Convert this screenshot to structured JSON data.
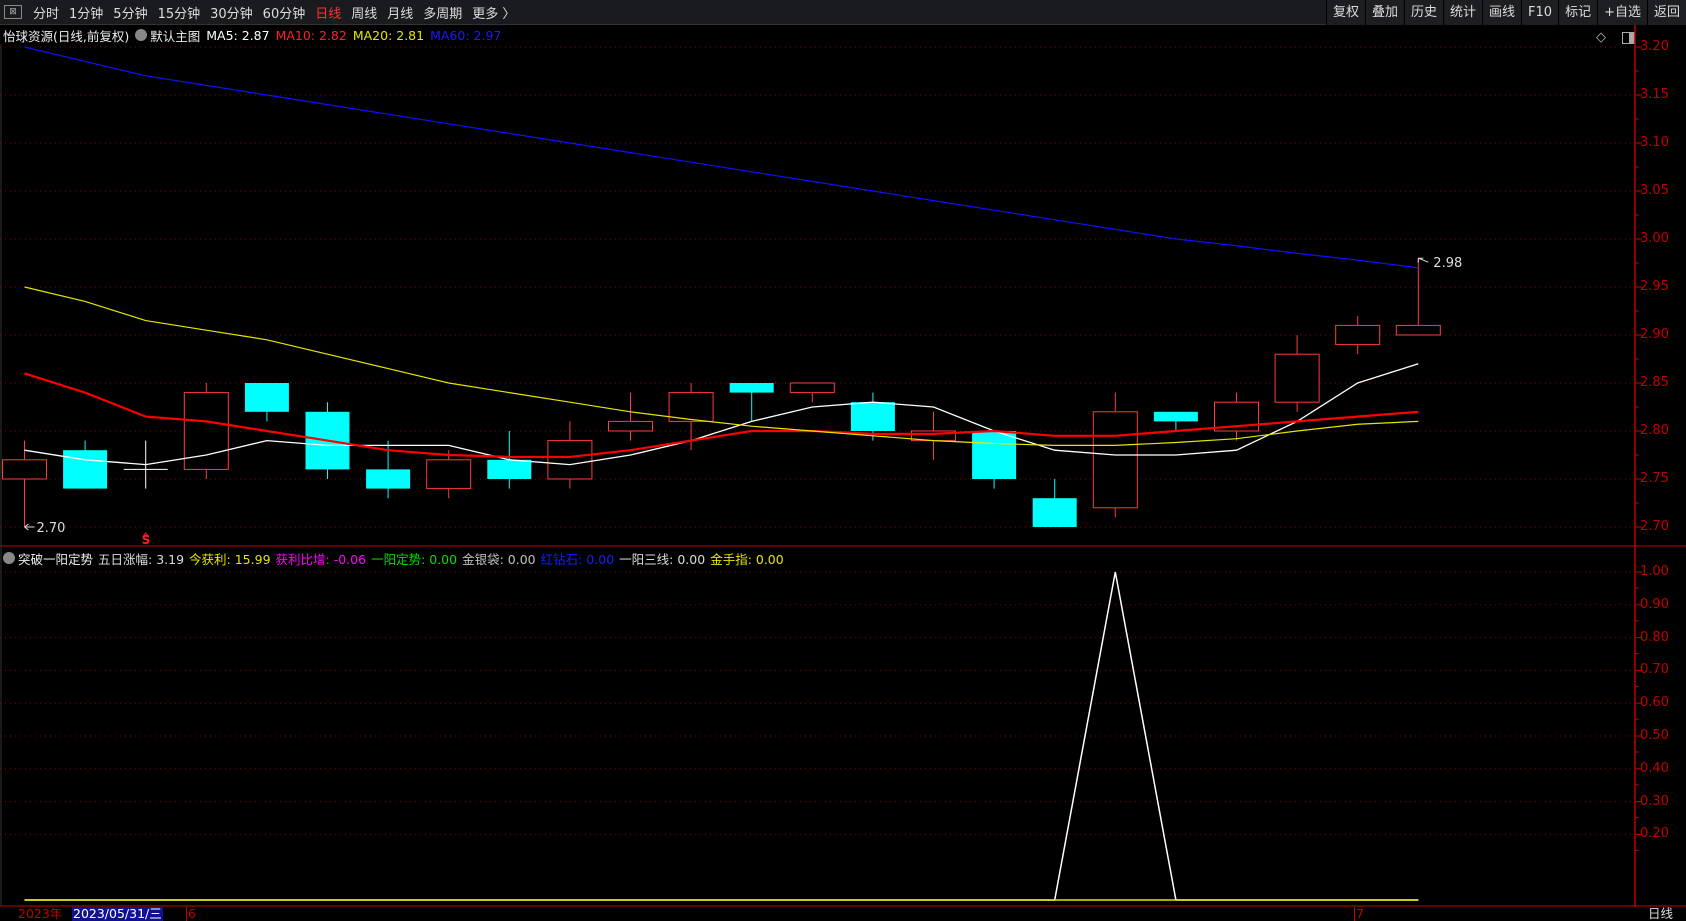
{
  "toolbar": {
    "tabs": [
      "分时",
      "1分钟",
      "5分钟",
      "15分钟",
      "30分钟",
      "60分钟",
      "日线",
      "周线",
      "月线",
      "多周期",
      "更多 〉"
    ],
    "active": "日线",
    "right_buttons": [
      "复权",
      "叠加",
      "历史",
      "统计",
      "画线",
      "F10",
      "标记",
      "+自选",
      "返回"
    ]
  },
  "info": {
    "title": "怡球资源(日线,前复权)",
    "template": "默认主图",
    "ma5": "MA5: 2.87",
    "ma10": "MA10: 2.82",
    "ma20": "MA20: 2.81",
    "ma60": "MA60: 2.97"
  },
  "indicator": {
    "name": "突破一阳定势",
    "items": [
      {
        "label": "五日涨幅: 3.19",
        "color": "#dddddd"
      },
      {
        "label": "今获利: 15.99",
        "color": "#e6e600"
      },
      {
        "label": "获利比增: -0.06",
        "color": "#ff00ff"
      },
      {
        "label": "一阳定势: 0.00",
        "color": "#00e000"
      },
      {
        "label": "金银袋: 0.00",
        "color": "#c0c0c0"
      },
      {
        "label": "红钻石: 0.00",
        "color": "#1020ff"
      },
      {
        "label": "一阳三线: 0.00",
        "color": "#dddddd"
      },
      {
        "label": "金手指: 0.00",
        "color": "#e6e600"
      }
    ]
  },
  "markers": {
    "low_label": "2.70",
    "high_label": "2.98",
    "signal": "S"
  },
  "datestrip": {
    "year": "2023年",
    "cursor_date": "2023/05/31/三",
    "month6": "6",
    "month7": "7",
    "period": "日线"
  },
  "colors": {
    "up": "#ff3b3b",
    "down": "#00ffff",
    "ma5": "#ffffff",
    "ma10": "#ff0000",
    "ma20": "#e6e600",
    "ma60": "#1010ff",
    "axis": "#c00000"
  },
  "chart_data": [
    {
      "type": "candlestick",
      "ylim": [
        2.7,
        3.2
      ],
      "yticks": [
        "3.20",
        "3.15",
        "3.10",
        "3.05",
        "3.00",
        "2.95",
        "2.90",
        "2.85",
        "2.80",
        "2.75",
        "2.70"
      ],
      "ohlc": [
        [
          2.75,
          2.79,
          2.7,
          2.77
        ],
        [
          2.78,
          2.79,
          2.74,
          2.74
        ],
        [
          2.76,
          2.79,
          2.74,
          2.76
        ],
        [
          2.76,
          2.85,
          2.75,
          2.84
        ],
        [
          2.85,
          2.85,
          2.81,
          2.82
        ],
        [
          2.82,
          2.83,
          2.75,
          2.76
        ],
        [
          2.76,
          2.79,
          2.73,
          2.74
        ],
        [
          2.74,
          2.78,
          2.73,
          2.77
        ],
        [
          2.77,
          2.8,
          2.74,
          2.75
        ],
        [
          2.75,
          2.81,
          2.74,
          2.79
        ],
        [
          2.8,
          2.84,
          2.79,
          2.81
        ],
        [
          2.81,
          2.85,
          2.78,
          2.84
        ],
        [
          2.85,
          2.85,
          2.81,
          2.84
        ],
        [
          2.84,
          2.85,
          2.83,
          2.85
        ],
        [
          2.83,
          2.84,
          2.79,
          2.8
        ],
        [
          2.79,
          2.82,
          2.77,
          2.8
        ],
        [
          2.8,
          2.8,
          2.74,
          2.75
        ],
        [
          2.73,
          2.75,
          2.7,
          2.7
        ],
        [
          2.72,
          2.84,
          2.71,
          2.82
        ],
        [
          2.82,
          2.82,
          2.8,
          2.81
        ],
        [
          2.8,
          2.84,
          2.79,
          2.83
        ],
        [
          2.83,
          2.9,
          2.82,
          2.88
        ],
        [
          2.89,
          2.92,
          2.88,
          2.91
        ],
        [
          2.9,
          2.98,
          2.9,
          2.91
        ]
      ],
      "series": [
        {
          "name": "MA5",
          "values": [
            2.78,
            2.77,
            2.765,
            2.775,
            2.79,
            2.785,
            2.785,
            2.785,
            2.77,
            2.765,
            2.775,
            2.79,
            2.81,
            2.825,
            2.83,
            2.825,
            2.8,
            2.78,
            2.775,
            2.775,
            2.78,
            2.81,
            2.85,
            2.87
          ]
        },
        {
          "name": "MA10",
          "values": [
            2.86,
            2.84,
            2.815,
            2.81,
            2.8,
            2.79,
            2.78,
            2.775,
            2.773,
            2.773,
            2.78,
            2.79,
            2.8,
            2.8,
            2.797,
            2.797,
            2.8,
            2.795,
            2.795,
            2.8,
            2.805,
            2.81,
            2.815,
            2.82
          ]
        },
        {
          "name": "MA20",
          "values": [
            2.95,
            2.935,
            2.915,
            2.905,
            2.895,
            2.88,
            2.865,
            2.85,
            2.84,
            2.83,
            2.82,
            2.812,
            2.805,
            2.8,
            2.795,
            2.79,
            2.787,
            2.785,
            2.785,
            2.788,
            2.792,
            2.8,
            2.807,
            2.81
          ]
        },
        {
          "name": "MA60",
          "values": [
            3.2,
            3.185,
            3.17,
            3.16,
            3.15,
            3.14,
            3.13,
            3.12,
            3.11,
            3.1,
            3.09,
            3.08,
            3.07,
            3.06,
            3.05,
            3.04,
            3.03,
            3.02,
            3.01,
            3.0,
            2.993,
            2.985,
            2.978,
            2.97
          ]
        }
      ]
    },
    {
      "type": "line",
      "ylim": [
        0,
        1.05
      ],
      "yticks": [
        "1.00",
        "0.90",
        "0.80",
        "0.70",
        "0.60",
        "0.50",
        "0.40",
        "0.30",
        "0.20"
      ],
      "series": [
        {
          "values": [
            0,
            0,
            0,
            0,
            0,
            0,
            0,
            0,
            0,
            0,
            0,
            0,
            0,
            0,
            0,
            0,
            0,
            0,
            1,
            0,
            0,
            0,
            0,
            0
          ],
          "color": "#ffffff"
        },
        {
          "values": [
            0,
            0,
            0,
            0,
            0,
            0,
            0,
            0,
            0,
            0,
            0,
            0,
            0,
            0,
            0,
            0,
            0,
            0,
            0,
            0,
            0,
            0,
            0,
            0
          ],
          "color": "#e6e600"
        }
      ]
    }
  ]
}
